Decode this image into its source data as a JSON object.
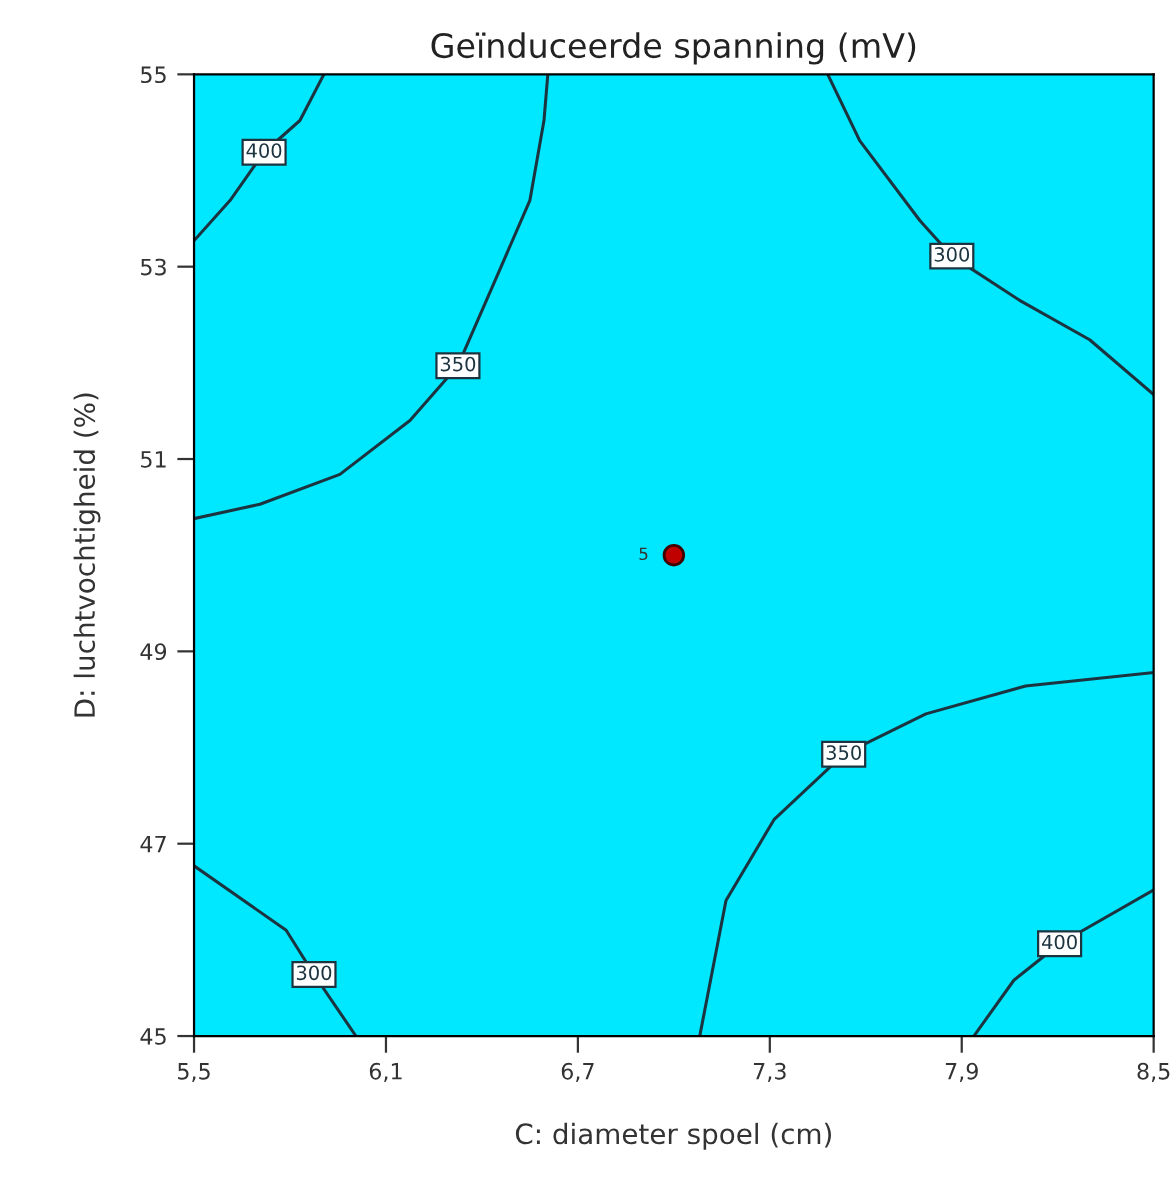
{
  "chart_data": {
    "type": "line",
    "title": "Geïnduceerde spanning (mV)",
    "xlabel": "C: diameter spoel (cm)",
    "ylabel": "D: luchtvochtigheid (%)",
    "xlim": [
      5.5,
      8.5
    ],
    "ylim": [
      45,
      55
    ],
    "xticks": [
      {
        "value": 5.5,
        "label": "5,5"
      },
      {
        "value": 6.1,
        "label": "6,1"
      },
      {
        "value": 6.7,
        "label": "6,7"
      },
      {
        "value": 7.3,
        "label": "7,3"
      },
      {
        "value": 7.9,
        "label": "7,9"
      },
      {
        "value": 8.5,
        "label": "8,5"
      }
    ],
    "yticks": [
      45,
      47,
      49,
      51,
      53,
      55
    ],
    "grid": false,
    "line_style": "solid",
    "annotations": [
      {
        "text": "5",
        "x": 7.0,
        "y": 50
      }
    ],
    "series": [
      {
        "name": "400",
        "color": "#1c3440",
        "x": [
          5.906,
          5.831,
          5.719,
          5.613,
          5.5
        ],
        "values": [
          55,
          54.52,
          54.19,
          53.69,
          53.27
        ]
      },
      {
        "name": "350",
        "color": "#1c3440",
        "x": [
          6.606,
          6.594,
          6.55,
          6.456,
          6.325,
          6.175,
          5.956,
          5.706,
          5.5
        ],
        "values": [
          55,
          54.52,
          53.69,
          52.97,
          51.97,
          51.4,
          50.84,
          50.53,
          50.38
        ]
      },
      {
        "name": "300",
        "color": "#1c3440",
        "x": [
          7.481,
          7.581,
          7.769,
          7.869,
          8.081,
          8.3,
          8.5
        ],
        "values": [
          55,
          54.31,
          53.48,
          53.11,
          52.65,
          52.24,
          51.67
        ]
      },
      {
        "name": "300",
        "color": "#1c3440",
        "x": [
          5.5,
          5.788,
          5.875,
          6.006
        ],
        "values": [
          46.77,
          46.1,
          45.64,
          45
        ]
      },
      {
        "name": "350",
        "color": "#1c3440",
        "x": [
          7.081,
          7.163,
          7.313,
          7.531,
          7.788,
          8.1,
          8.5
        ],
        "values": [
          45,
          46.41,
          47.25,
          47.93,
          48.35,
          48.64,
          48.78
        ]
      },
      {
        "name": "400",
        "color": "#1c3440",
        "x": [
          7.938,
          8.063,
          8.206,
          8.5
        ],
        "values": [
          45,
          45.58,
          45.96,
          46.52
        ]
      },
      {
        "type": "scatter",
        "marker": "circle",
        "color": "#c00000",
        "x": [
          7.0
        ],
        "values": [
          50
        ]
      }
    ]
  }
}
